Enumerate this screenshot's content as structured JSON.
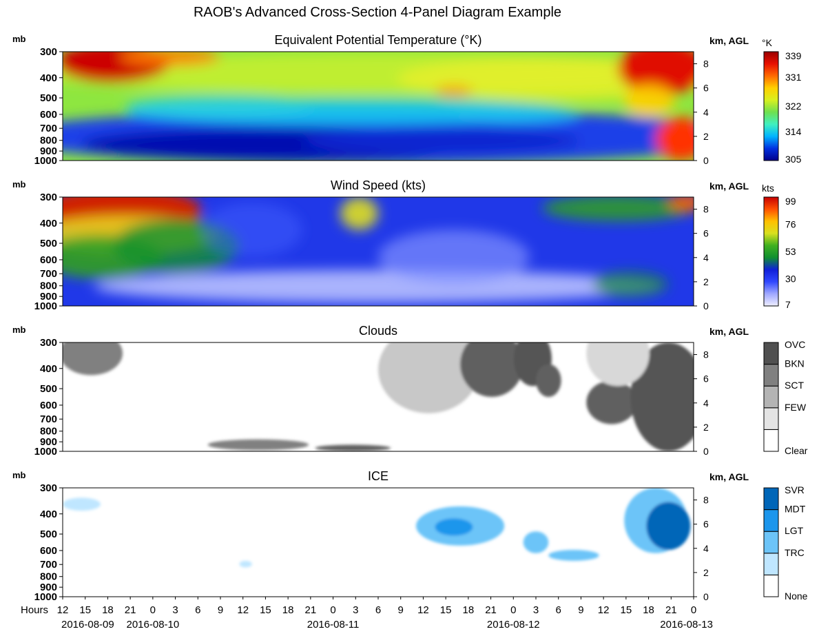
{
  "title": "RAOB's Advanced Cross-Section   4-Panel Diagram Example",
  "labels": {
    "pressure_unit": "mb",
    "height_unit": "km, AGL",
    "hours_label": "Hours"
  },
  "chart_data": [
    {
      "type": "heatmap",
      "id": "theta_e",
      "title": "Equivalent Potential Temperature (°K)",
      "ylabel_left": "mb",
      "ylabel_right": "km, AGL",
      "pressure_ticks": [
        300,
        400,
        500,
        600,
        700,
        800,
        900,
        1000
      ],
      "height_ticks": [
        0,
        2,
        4,
        6,
        8
      ],
      "colorbar": {
        "unit": "°K",
        "ticks": [
          305,
          314,
          322,
          331,
          339
        ],
        "min": 305,
        "max": 339,
        "stops": [
          "#00008b",
          "#0030e0",
          "#00b4ff",
          "#40f0c0",
          "#6ee050",
          "#d8f020",
          "#ffd000",
          "#ff6a00",
          "#e81000",
          "#9a0000"
        ]
      }
    },
    {
      "type": "heatmap",
      "id": "wind",
      "title": "Wind Speed (kts)",
      "ylabel_left": "mb",
      "ylabel_right": "km, AGL",
      "pressure_ticks": [
        300,
        400,
        500,
        600,
        700,
        800,
        900,
        1000
      ],
      "height_ticks": [
        0,
        2,
        4,
        6,
        8
      ],
      "colorbar": {
        "unit": "kts",
        "ticks": [
          7,
          30,
          53,
          76,
          99
        ],
        "min": 7,
        "max": 99,
        "stops": [
          "#eeeeff",
          "#a0a8ff",
          "#3048ff",
          "#1020d8",
          "#109030",
          "#40b020",
          "#d8e020",
          "#ffc000",
          "#ff5000",
          "#c80000"
        ]
      }
    },
    {
      "type": "heatmap",
      "id": "clouds",
      "title": "Clouds",
      "ylabel_left": "mb",
      "ylabel_right": "km, AGL",
      "pressure_ticks": [
        300,
        400,
        500,
        600,
        700,
        800,
        900,
        1000
      ],
      "height_ticks": [
        0,
        2,
        4,
        6,
        8
      ],
      "categories": [
        "Clear",
        "FEW",
        "SCT",
        "BKN",
        "OVC"
      ],
      "category_colors": [
        "#ffffff",
        "#e4e4e4",
        "#b4b4b4",
        "#808080",
        "#505050"
      ]
    },
    {
      "type": "heatmap",
      "id": "ice",
      "title": "ICE",
      "ylabel_left": "mb",
      "ylabel_right": "km, AGL",
      "pressure_ticks": [
        300,
        400,
        500,
        600,
        700,
        800,
        900,
        1000
      ],
      "height_ticks": [
        0,
        2,
        4,
        6,
        8
      ],
      "categories": [
        "None",
        "TRC",
        "LGT",
        "MDT",
        "SVR"
      ],
      "category_colors": [
        "#ffffff",
        "#bfe6ff",
        "#6cc4f8",
        "#1c96ec",
        "#0066b8"
      ]
    }
  ],
  "x_axis": {
    "hour_ticks": [
      "12",
      "15",
      "18",
      "21",
      "0",
      "3",
      "6",
      "9",
      "12",
      "15",
      "18",
      "21",
      "0",
      "3",
      "6",
      "9",
      "12",
      "15",
      "18",
      "21",
      "0",
      "3",
      "6",
      "9",
      "12",
      "15",
      "18",
      "21",
      "0"
    ],
    "dates": [
      "2016-08-09",
      "2016-08-10",
      "2016-08-11",
      "2016-08-12",
      "2016-08-13"
    ],
    "date_hour_index": [
      0,
      4,
      12,
      20,
      28
    ]
  }
}
